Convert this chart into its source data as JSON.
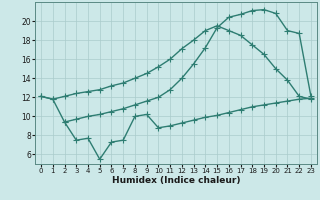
{
  "bg_color": "#cce8e8",
  "grid_color": "#aacccc",
  "line_color": "#2e7d72",
  "marker_color": "#2e7d72",
  "xlabel": "Humidex (Indice chaleur)",
  "ylim": [
    5,
    22
  ],
  "xlim": [
    -0.5,
    23.5
  ],
  "yticks": [
    6,
    8,
    10,
    12,
    14,
    16,
    18,
    20
  ],
  "xticks": [
    0,
    1,
    2,
    3,
    4,
    5,
    6,
    7,
    8,
    9,
    10,
    11,
    12,
    13,
    14,
    15,
    16,
    17,
    18,
    19,
    20,
    21,
    22,
    23
  ],
  "curve_top_x": [
    0,
    1,
    2,
    3,
    4,
    5,
    6,
    7,
    8,
    9,
    10,
    11,
    12,
    13,
    14,
    15,
    16,
    17,
    18,
    19,
    20,
    21,
    22,
    23
  ],
  "curve_top_y": [
    12.1,
    11.8,
    12.1,
    12.4,
    12.6,
    12.8,
    13.2,
    13.5,
    14.0,
    14.5,
    15.2,
    16.0,
    17.1,
    18.0,
    19.0,
    19.5,
    19.0,
    18.5,
    17.5,
    16.5,
    15.0,
    13.8,
    12.1,
    11.8
  ],
  "curve_mid_x": [
    0,
    1,
    2,
    3,
    4,
    5,
    6,
    7,
    8,
    9,
    10,
    11,
    12,
    13,
    14,
    15,
    16,
    17,
    18,
    19,
    20,
    21,
    22,
    23
  ],
  "curve_mid_y": [
    12.1,
    11.8,
    9.4,
    9.7,
    10.0,
    10.2,
    10.5,
    10.8,
    11.2,
    11.6,
    12.0,
    12.8,
    14.0,
    15.5,
    17.2,
    19.3,
    20.4,
    20.7,
    21.1,
    21.2,
    20.8,
    19.0,
    18.7,
    12.1
  ],
  "curve_bot_x": [
    2,
    3,
    4,
    5,
    6,
    7,
    8,
    9,
    10,
    11,
    12,
    13,
    14,
    15,
    16,
    17,
    18,
    19,
    20,
    21,
    22,
    23
  ],
  "curve_bot_y": [
    9.4,
    7.5,
    7.7,
    5.5,
    7.3,
    7.5,
    10.0,
    10.2,
    8.8,
    9.0,
    9.3,
    9.6,
    9.9,
    10.1,
    10.4,
    10.7,
    11.0,
    11.2,
    11.4,
    11.6,
    11.8,
    11.9
  ]
}
